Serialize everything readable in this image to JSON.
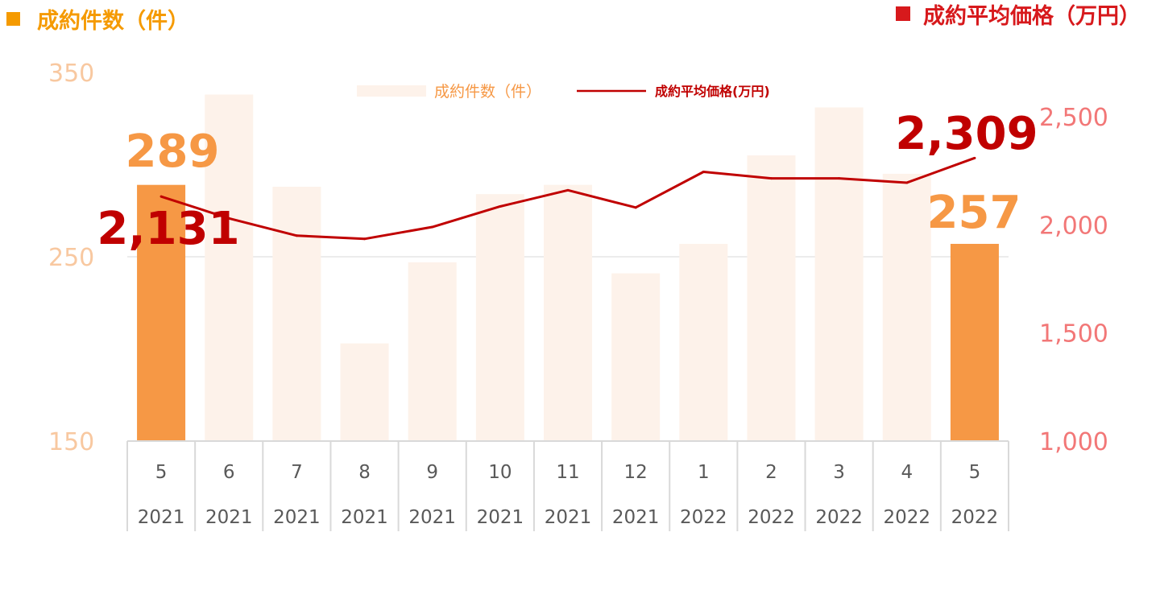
{
  "header": {
    "left_title": "成約件数（件）",
    "right_title": "成約平均価格（万円）",
    "left_color": "#F59A00",
    "right_color": "#D7191C"
  },
  "legend": {
    "bar_label": "成約件数（件）",
    "line_label": "成約平均価格(万円)"
  },
  "colors": {
    "bar_light": "#FDF2EA",
    "bar_highlight": "#F69845",
    "line": "#C00000",
    "left_axis_text": "#F8C8A0",
    "right_axis_text": "#F27777",
    "label_bar": "#F69845",
    "label_line": "#C00000",
    "grid": "#D9D9D9",
    "axis_text": "#595959"
  },
  "chart_data": {
    "type": "bar",
    "categories": [
      {
        "month": "5",
        "year": "2021"
      },
      {
        "month": "6",
        "year": "2021"
      },
      {
        "month": "7",
        "year": "2021"
      },
      {
        "month": "8",
        "year": "2021"
      },
      {
        "month": "9",
        "year": "2021"
      },
      {
        "month": "10",
        "year": "2021"
      },
      {
        "month": "11",
        "year": "2021"
      },
      {
        "month": "12",
        "year": "2021"
      },
      {
        "month": "1",
        "year": "2022"
      },
      {
        "month": "2",
        "year": "2022"
      },
      {
        "month": "3",
        "year": "2022"
      },
      {
        "month": "4",
        "year": "2022"
      },
      {
        "month": "5",
        "year": "2022"
      }
    ],
    "series": [
      {
        "name": "成約件数（件）",
        "type": "bar",
        "axis": "left",
        "values": [
          289,
          338,
          288,
          203,
          247,
          284,
          289,
          241,
          257,
          305,
          331,
          295,
          257
        ],
        "highlight": [
          0,
          12
        ]
      },
      {
        "name": "成約平均価格(万円)",
        "type": "line",
        "axis": "right",
        "values": [
          2131,
          2030,
          1950,
          1935,
          1990,
          2085,
          2160,
          2080,
          2245,
          2215,
          2215,
          2195,
          2309
        ]
      }
    ],
    "left_axis": {
      "min": 150,
      "max": 350,
      "ticks": [
        "350",
        "250",
        "150"
      ],
      "tick_values": [
        350,
        250,
        150
      ]
    },
    "right_axis": {
      "min": 1000,
      "max": 2500,
      "ticks": [
        "2,500",
        "2,000",
        "1,500",
        "1,000"
      ],
      "tick_values": [
        2500,
        2000,
        1500,
        1000
      ]
    },
    "data_labels": {
      "bar_first": "289",
      "bar_last": "257",
      "line_first": "2,131",
      "line_last": "2,309"
    },
    "grid": true,
    "legend_position": "top-center"
  }
}
